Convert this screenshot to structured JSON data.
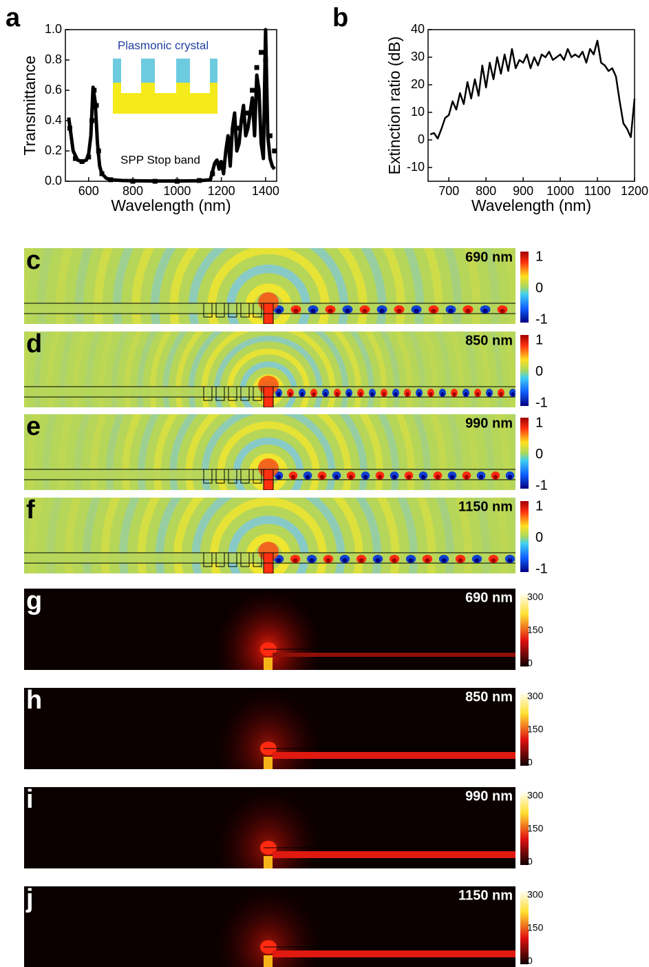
{
  "chart_data": [
    {
      "type": "line",
      "panel": "a",
      "x_label": "Wavelength (nm)",
      "y_label": "Transmittance",
      "annotations": [
        "Plasmonic crystal",
        "SPP Stop band"
      ],
      "xlim": [
        495,
        1450
      ],
      "xticks": [
        600,
        800,
        1000,
        1200,
        1400
      ],
      "ylim": [
        0,
        1
      ],
      "yticks": [
        {
          "value": 0,
          "label": "0.0"
        },
        {
          "value": 0.2,
          "label": "0.2"
        },
        {
          "value": 0.4,
          "label": "0.4"
        },
        {
          "value": 0.6,
          "label": "0.6"
        },
        {
          "value": 0.8,
          "label": "0.8"
        },
        {
          "value": 1,
          "label": "1.0"
        }
      ],
      "series": [
        {
          "color": "#000000",
          "style": "line",
          "x": [
            510,
            530,
            550,
            570,
            590,
            600,
            610,
            620,
            630,
            640,
            650,
            660,
            680,
            700,
            750,
            800,
            900,
            1000,
            1100,
            1150,
            1170,
            1180,
            1190,
            1200,
            1210,
            1220,
            1230,
            1240,
            1250,
            1260,
            1270,
            1280,
            1290,
            1300,
            1310,
            1320,
            1330,
            1340,
            1350,
            1360,
            1370,
            1380,
            1390,
            1400,
            1410,
            1420,
            1430,
            1440
          ],
          "values": [
            0.42,
            0.2,
            0.14,
            0.13,
            0.14,
            0.18,
            0.3,
            0.62,
            0.52,
            0.25,
            0.1,
            0.05,
            0.02,
            0.01,
            0.005,
            0.003,
            0.002,
            0.002,
            0.003,
            0.01,
            0.12,
            0.14,
            0.08,
            0.13,
            0.05,
            0.2,
            0.3,
            0.1,
            0.35,
            0.45,
            0.2,
            0.25,
            0.4,
            0.5,
            0.3,
            0.35,
            0.45,
            0.55,
            0.3,
            0.7,
            0.6,
            0.25,
            0.15,
            1.0,
            0.3,
            0.15,
            0.1,
            0.08
          ]
        },
        {
          "color": "#000000",
          "style": "markers",
          "x": [
            515,
            540,
            570,
            600,
            615,
            625,
            635,
            645,
            660,
            700,
            800,
            900,
            1000,
            1100,
            1160,
            1190,
            1210,
            1240,
            1270,
            1300,
            1320,
            1340,
            1360,
            1380,
            1400,
            1420,
            1440
          ],
          "values": [
            0.35,
            0.15,
            0.13,
            0.16,
            0.4,
            0.6,
            0.5,
            0.2,
            0.05,
            0.01,
            0,
            0,
            0,
            0.005,
            0.05,
            0.12,
            0.1,
            0.28,
            0.35,
            0.4,
            0.45,
            0.6,
            0.75,
            0.85,
            0.8,
            0.3,
            0.2
          ]
        }
      ]
    },
    {
      "type": "line",
      "panel": "b",
      "x_label": "Wavelength (nm)",
      "y_label": "Extinction ratio (dB)",
      "xlim": [
        644,
        1200
      ],
      "xticks": [
        700,
        800,
        900,
        1000,
        1100,
        1200
      ],
      "ylim": [
        -15,
        40
      ],
      "yticks": [
        -10,
        0,
        10,
        20,
        30,
        40
      ],
      "series": [
        {
          "color": "#000000",
          "style": "line",
          "x": [
            650,
            660,
            670,
            680,
            690,
            700,
            710,
            720,
            730,
            740,
            750,
            760,
            770,
            780,
            790,
            800,
            810,
            820,
            830,
            840,
            850,
            860,
            870,
            880,
            890,
            900,
            910,
            920,
            930,
            940,
            950,
            960,
            970,
            980,
            990,
            1000,
            1010,
            1020,
            1030,
            1040,
            1050,
            1060,
            1070,
            1080,
            1090,
            1100,
            1110,
            1120,
            1130,
            1140,
            1150,
            1160,
            1170,
            1180,
            1190,
            1200
          ],
          "values": [
            2,
            2.5,
            0.5,
            4,
            8,
            9,
            14,
            11,
            17,
            13,
            21,
            15,
            22,
            16,
            27,
            19,
            28,
            22,
            30,
            24,
            31,
            25,
            33,
            26,
            29,
            28,
            31,
            26,
            30,
            27,
            31,
            30,
            32,
            29,
            30,
            31,
            29,
            33,
            30,
            31,
            30,
            32,
            28,
            33,
            31,
            36,
            28,
            27,
            25,
            26,
            23,
            14,
            6,
            4,
            1,
            15
          ]
        }
      ]
    }
  ],
  "field_maps": [
    {
      "panel": "c",
      "wavelength": "690 nm",
      "colorbar_ticks": [
        1,
        0,
        -1
      ]
    },
    {
      "panel": "d",
      "wavelength": "850 nm",
      "colorbar_ticks": [
        1,
        0,
        -1
      ]
    },
    {
      "panel": "e",
      "wavelength": "990 nm",
      "colorbar_ticks": [
        1,
        0,
        -1
      ]
    },
    {
      "panel": "f",
      "wavelength": "1150 nm",
      "colorbar_ticks": [
        1,
        0,
        -1
      ]
    },
    {
      "panel": "g",
      "wavelength": "690 nm",
      "colorbar_ticks": [
        300,
        150,
        0
      ]
    },
    {
      "panel": "h",
      "wavelength": "850 nm",
      "colorbar_ticks": [
        300,
        150,
        0
      ]
    },
    {
      "panel": "i",
      "wavelength": "990 nm",
      "colorbar_ticks": [
        300,
        150,
        0
      ]
    },
    {
      "panel": "j",
      "wavelength": "1150 nm",
      "colorbar_ticks": [
        300,
        150,
        0
      ]
    }
  ]
}
